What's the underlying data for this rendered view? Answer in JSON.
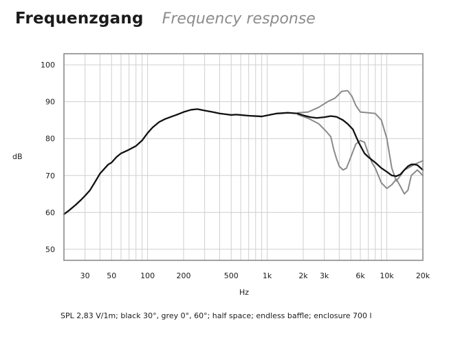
{
  "title": "Frequenzgang",
  "subtitle": "Frequency response",
  "footnote": "SPL 2,83 V/1m; black 30°, grey 0°, 60°; half space; endless baffle; enclosure 700 l",
  "chart_data": {
    "type": "line",
    "xlabel": "Hz",
    "ylabel": "dB",
    "xscale": "log",
    "xlim": [
      20,
      20000
    ],
    "ylim": [
      47,
      103
    ],
    "grid": true,
    "legend": "none",
    "x_tick_labels": [
      {
        "v": 30,
        "label": "30"
      },
      {
        "v": 50,
        "label": "50"
      },
      {
        "v": 100,
        "label": "100"
      },
      {
        "v": 200,
        "label": "200"
      },
      {
        "v": 500,
        "label": "500"
      },
      {
        "v": 1000,
        "label": "1k"
      },
      {
        "v": 2000,
        "label": "2k"
      },
      {
        "v": 3000,
        "label": "3k"
      },
      {
        "v": 6000,
        "label": "6k"
      },
      {
        "v": 10000,
        "label": "10k"
      },
      {
        "v": 20000,
        "label": "20k"
      }
    ],
    "y_tick_labels": [
      {
        "v": 50,
        "label": "50"
      },
      {
        "v": 60,
        "label": "60"
      },
      {
        "v": 70,
        "label": "70"
      },
      {
        "v": 80,
        "label": "80"
      },
      {
        "v": 90,
        "label": "90"
      },
      {
        "v": 100,
        "label": "100"
      }
    ],
    "colors": {
      "black": "#111111",
      "grey": "#8a8a8a",
      "grid": "#cfcfcf",
      "frame": "#8a8a8a"
    },
    "series": [
      {
        "color": "grey",
        "x": [
          1800,
          2200,
          2700,
          3200,
          3700,
          4200,
          4700,
          5100,
          5500,
          6000,
          7000,
          8000,
          9000,
          10000,
          11000,
          12000,
          13000,
          14000,
          15000,
          17000,
          20000
        ],
        "y": [
          87,
          87.2,
          88.5,
          90,
          91,
          92.8,
          93,
          91.5,
          89,
          87.2,
          87,
          86.8,
          85,
          80,
          72,
          68.5,
          70,
          71.5,
          72,
          73,
          74
        ]
      },
      {
        "color": "grey",
        "x": [
          1800,
          2200,
          2700,
          3100,
          3400,
          3600,
          3800,
          4000,
          4300,
          4600,
          5000,
          5500,
          6000,
          6500,
          7000,
          7500,
          8000,
          9000,
          10000,
          11000,
          12000,
          13000,
          14000,
          15000,
          16000,
          18000,
          20000
        ],
        "y": [
          86.5,
          85.5,
          84,
          82,
          80.5,
          77,
          74.5,
          72.5,
          71.5,
          72,
          75,
          78.5,
          79.5,
          79,
          76,
          73.5,
          72,
          68,
          66.5,
          67.5,
          69,
          67,
          65,
          66,
          70,
          71.5,
          70
        ]
      },
      {
        "color": "black",
        "x": [
          20,
          22,
          25,
          28,
          30,
          33,
          36,
          40,
          44,
          47,
          50,
          55,
          60,
          65,
          70,
          80,
          90,
          100,
          110,
          125,
          140,
          160,
          180,
          200,
          230,
          260,
          300,
          350,
          400,
          450,
          500,
          550,
          600,
          700,
          800,
          900,
          1000,
          1200,
          1500,
          1800,
          2000,
          2300,
          2600,
          3000,
          3400,
          3800,
          4300,
          4700,
          5200,
          5800,
          6500,
          7000,
          8000,
          9000,
          10000,
          11000,
          12000,
          13000,
          14000,
          15000,
          16000,
          17000,
          18000,
          20000
        ],
        "y": [
          59.5,
          60.5,
          62,
          63.5,
          64.5,
          66,
          68,
          70.5,
          72,
          73,
          73.5,
          75,
          76,
          76.5,
          77,
          78,
          79.5,
          81.5,
          83,
          84.5,
          85.3,
          86,
          86.6,
          87.2,
          87.8,
          88,
          87.6,
          87.2,
          86.8,
          86.6,
          86.4,
          86.5,
          86.4,
          86.2,
          86.1,
          86,
          86.3,
          86.8,
          87,
          86.8,
          86.3,
          85.8,
          85.6,
          85.8,
          86.1,
          85.9,
          85,
          84,
          82.5,
          79,
          76,
          75,
          73.5,
          72,
          71,
          70,
          69.8,
          70.3,
          71.5,
          72.5,
          73,
          73,
          72.8,
          71.5
        ]
      }
    ]
  }
}
